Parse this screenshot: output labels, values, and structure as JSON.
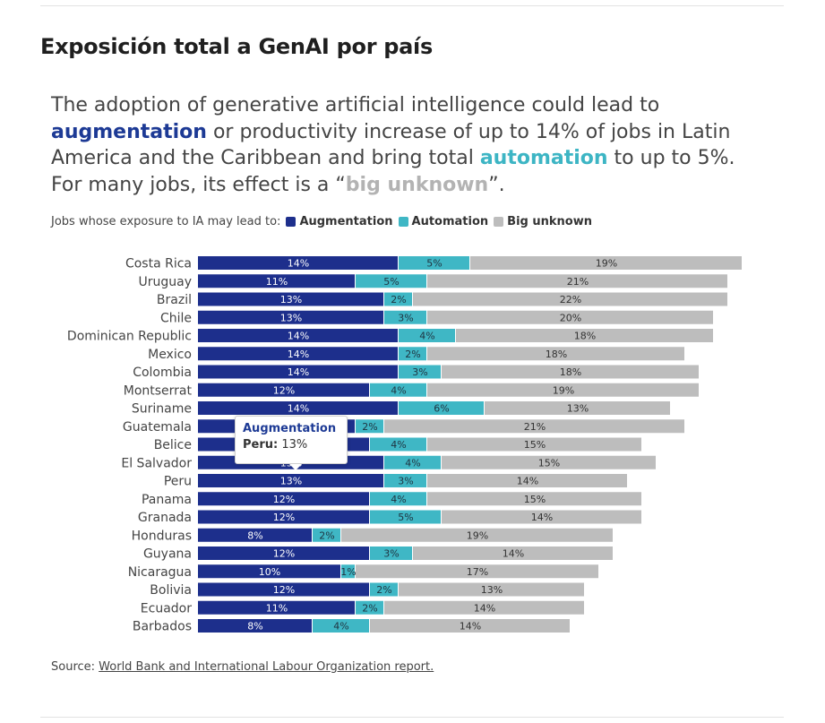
{
  "page": {
    "heading": "Exposición total a GenAI por país",
    "lead": {
      "part1": "The adoption of generative artificial intelligence could lead to ",
      "augmentation": "augmentation",
      "part2": " or productivity increase of up to 14% of jobs in Latin America and the Caribbean and bring total ",
      "automation": "automation",
      "part3": " to up to 5%. For many jobs, its effect is a “",
      "big_unknown": "big unknown",
      "part4": "”."
    },
    "legend": {
      "prefix": "Jobs whose exposure to IA may lead to:",
      "items": [
        {
          "label": "Augmentation",
          "color": "#1d2f8c"
        },
        {
          "label": "Automation",
          "color": "#3fb7c5"
        },
        {
          "label": "Big unknown",
          "color": "#bdbdbd"
        }
      ]
    },
    "source": {
      "prefix": "Source: ",
      "link": "World Bank and International Labour Organization report."
    },
    "tooltip": {
      "title": "Augmentation",
      "country": "Peru:",
      "value": "13%"
    }
  },
  "chart_data": {
    "type": "bar",
    "orientation": "horizontal",
    "stacked": true,
    "categories": [
      "Costa Rica",
      "Uruguay",
      "Brazil",
      "Chile",
      "Dominican Republic",
      "Mexico",
      "Colombia",
      "Montserrat",
      "Suriname",
      "Guatemala",
      "Belice",
      "El Salvador",
      "Peru",
      "Panama",
      "Granada",
      "Honduras",
      "Guyana",
      "Nicaragua",
      "Bolivia",
      "Ecuador",
      "Barbados"
    ],
    "series": [
      {
        "name": "Augmentation",
        "color": "#1d2f8c",
        "values": [
          14,
          11,
          13,
          13,
          14,
          14,
          14,
          12,
          14,
          11,
          12,
          13,
          13,
          12,
          12,
          8,
          12,
          10,
          12,
          11,
          8
        ]
      },
      {
        "name": "Automation",
        "color": "#3fb7c5",
        "values": [
          5,
          5,
          2,
          3,
          4,
          2,
          3,
          4,
          6,
          2,
          4,
          4,
          3,
          4,
          5,
          2,
          3,
          1,
          2,
          2,
          4
        ]
      },
      {
        "name": "Big unknown",
        "color": "#bdbdbd",
        "values": [
          19,
          21,
          22,
          20,
          18,
          18,
          18,
          19,
          13,
          21,
          15,
          15,
          14,
          15,
          14,
          19,
          14,
          17,
          13,
          14,
          14
        ]
      }
    ],
    "value_suffix": "%",
    "grid": false,
    "legend_position": "top-left"
  }
}
